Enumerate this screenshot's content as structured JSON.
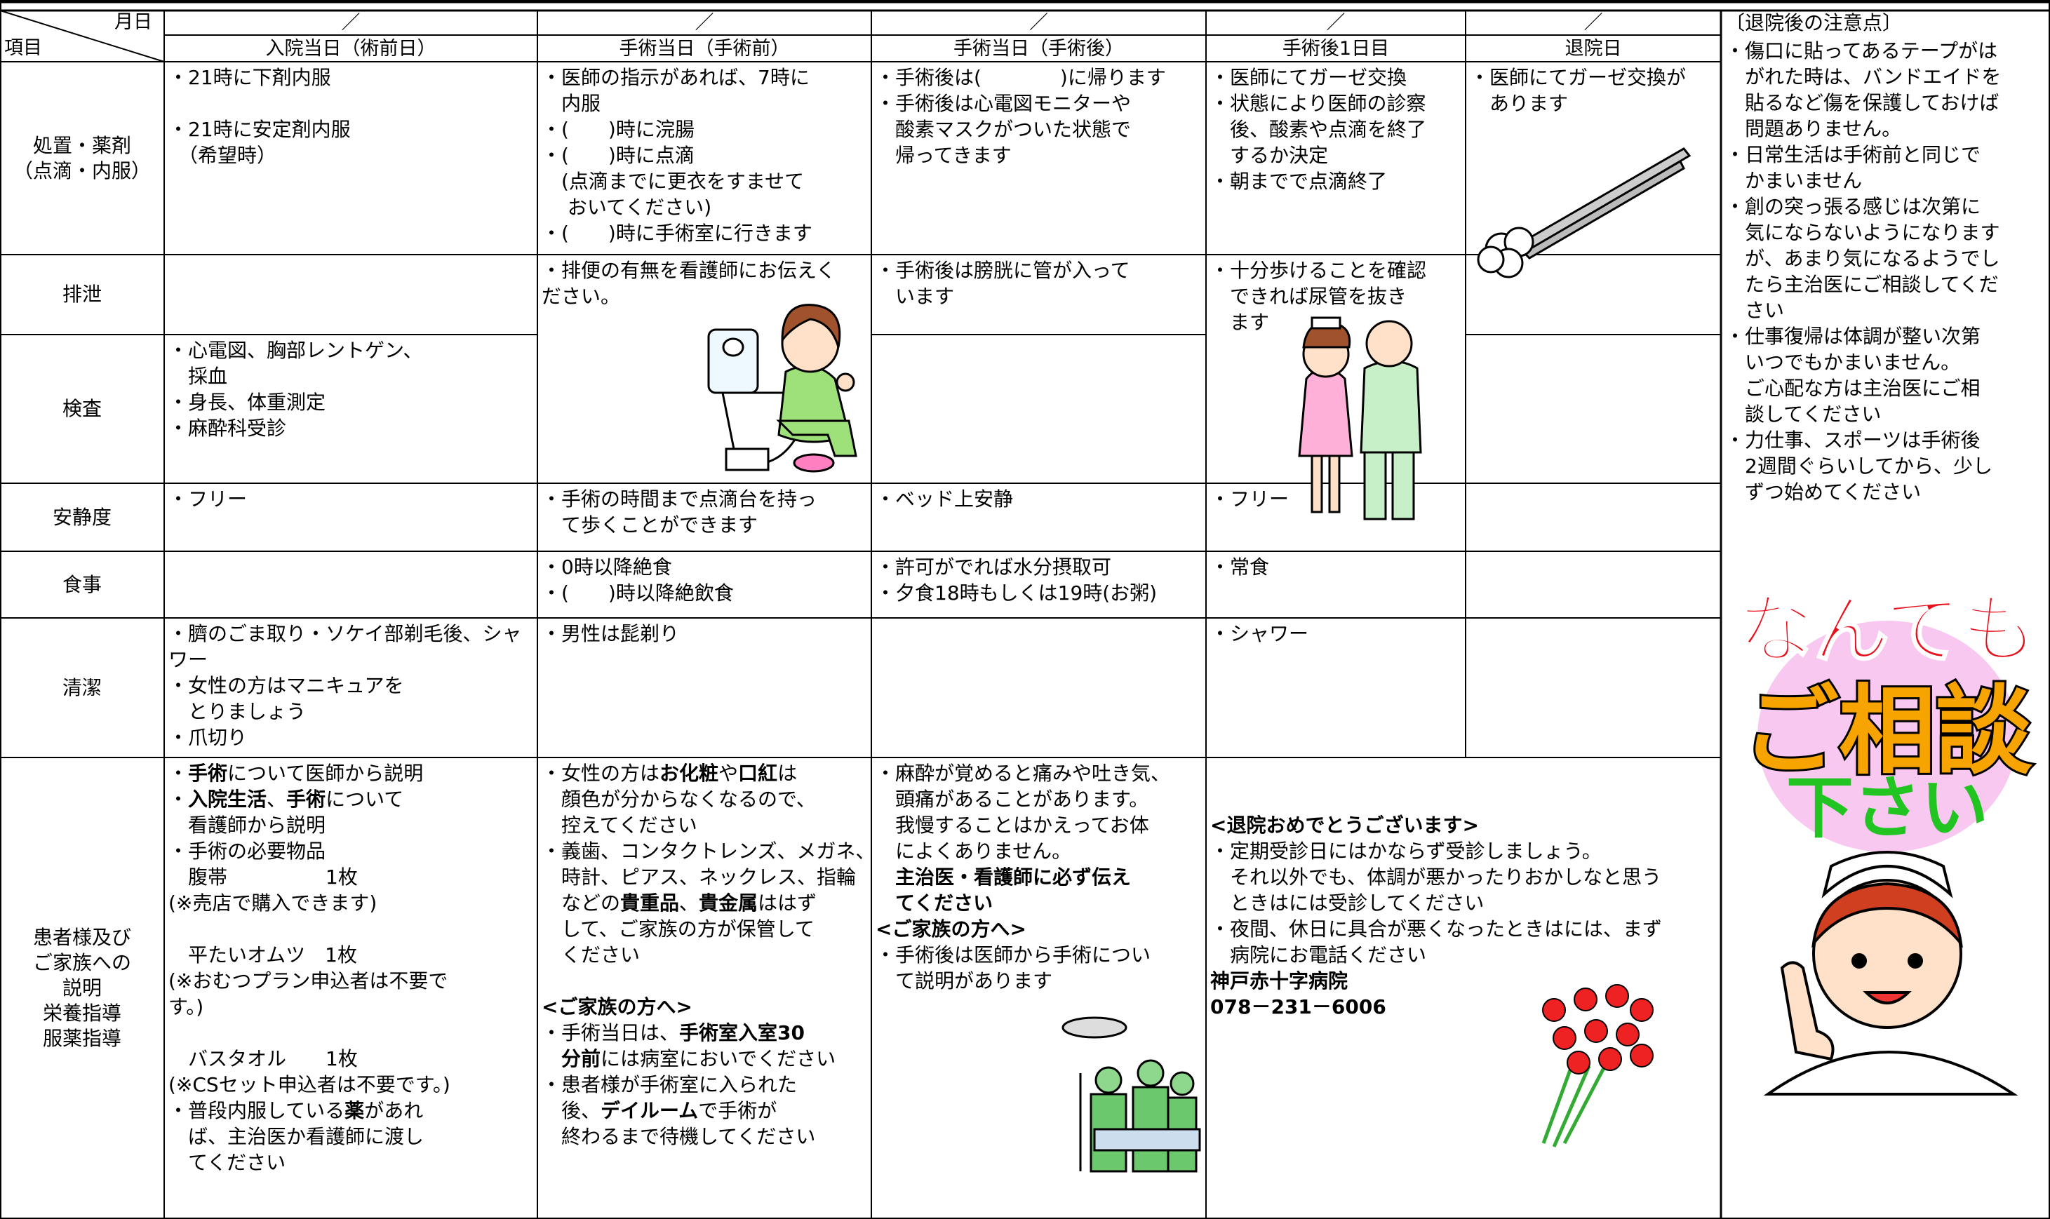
{
  "header": {
    "date_label": "月日",
    "item_label": "項目",
    "date_marks": [
      "／",
      "／",
      "／",
      "／",
      "／"
    ],
    "columns": [
      "入院当日（術前日）",
      "手術当日（手術前）",
      "手術当日（手術後）",
      "手術後1日目",
      "退院日"
    ],
    "notes_title": "〔退院後の注意点〕"
  },
  "rows": [
    [
      "処置・薬剤",
      "（点滴・内服）"
    ],
    [
      "排泄"
    ],
    [
      "検査"
    ],
    [
      "安静度"
    ],
    [
      "食事"
    ],
    [
      "清潔"
    ],
    [
      "患者様及び",
      "ご家族への",
      "説明",
      "栄養指導",
      "服薬指導"
    ]
  ],
  "cells": [
    {
      "blocks": [
        [
          "・21時に下剤内服"
        ],
        [
          "・21時に安定剤内服",
          "　（希望時）"
        ]
      ]
    },
    {
      "blocks": [
        [
          "・医師の指示があれば、7時に",
          "　内服",
          "・(　　)時に浣腸",
          "・(　　)時に点滴",
          "　(点滴までに更衣をすませて",
          "　 おいてください)",
          "・(　　)時に手術室に行きます"
        ]
      ]
    },
    {
      "blocks": [
        [
          "・手術後は(　　　　)に帰ります",
          "・手術後は心電図モニターや",
          "　酸素マスクがついた状態で",
          "　帰ってきます"
        ]
      ]
    },
    {
      "blocks": [
        [
          "・医師にてガーゼ交換",
          "・状態により医師の診察",
          "　後、酸素や点滴を終了",
          "　するか決定",
          "・朝までで点滴終了"
        ]
      ]
    },
    {
      "blocks": [
        [
          "・医師にてガーゼ交換が",
          "　あります"
        ]
      ]
    },
    {
      "blocks": [
        [
          "・排便の有無を看護師にお伝えく",
          "ださい。"
        ]
      ]
    },
    {
      "blocks": [
        [
          "・手術後は膀胱に管が入って",
          "　います"
        ]
      ]
    },
    {
      "blocks": [
        [
          "・十分歩けることを確認",
          "　できれば尿管を抜き",
          "　ます"
        ]
      ]
    },
    {
      "blocks": [
        [
          "・心電図、胸部レントゲン、",
          "　採血",
          "・身長、体重測定",
          "・麻酔科受診"
        ]
      ]
    },
    {
      "blocks": [
        [
          "・フリー"
        ]
      ]
    },
    {
      "blocks": [
        [
          "・手術の時間まで点滴台を持っ",
          "　て歩くことができます"
        ]
      ]
    },
    {
      "blocks": [
        [
          "・ベッド上安静"
        ]
      ]
    },
    {
      "blocks": [
        [
          "・フリー"
        ]
      ]
    },
    {
      "blocks": [
        [
          "・0時以降絶食",
          "・(　　)時以降絶飲食"
        ]
      ]
    },
    {
      "blocks": [
        [
          "・許可がでれば水分摂取可",
          "・夕食18時もしくは19時(お粥)"
        ]
      ]
    },
    {
      "blocks": [
        [
          "・常食"
        ]
      ]
    },
    {
      "blocks": [
        [
          "・臍のごま取り・ソケイ部剃毛後、シャ",
          "ワー",
          "・女性の方はマニキュアを",
          "　とりましょう",
          "・爪切り"
        ]
      ]
    },
    {
      "blocks": [
        [
          "・男性は髭剃り"
        ]
      ]
    },
    {
      "blocks": [
        [
          "・シャワー"
        ]
      ]
    },
    {
      "blocks": [
        [
          [
            "・",
            {
              "text": "手術",
              "bold": true
            },
            "について医師から説明"
          ],
          [
            "・",
            {
              "text": "入院生活",
              "bold": true
            },
            "、",
            {
              "text": "手術",
              "bold": true
            },
            "について"
          ],
          "　看護師から説明",
          "・手術の必要物品",
          "　腹帯　　　　　1枚",
          "(※売店で購入できます)"
        ],
        [
          "　平たいオムツ　1枚",
          "(※おむつプラン申込者は不要で",
          "す。)"
        ],
        [
          "　バスタオル　　1枚",
          "(※CSセット申込者は不要です。)",
          [
            "・普段内服している",
            {
              "text": "薬",
              "bold": true
            },
            "があれ"
          ],
          "　ば、主治医か看護師に渡し",
          "　てください"
        ]
      ]
    },
    {
      "blocks": [
        [
          [
            "・女性の方は",
            {
              "text": "お化粧",
              "bold": true
            },
            "や",
            {
              "text": "口紅",
              "bold": true
            },
            "は"
          ],
          "　顔色が分からなくなるので、",
          "　控えてください",
          "・義歯、コンタクトレンズ、メガネ、",
          "　時計、ピアス、ネックレス、指輪",
          [
            "　などの",
            {
              "text": "貴重品",
              "bold": true
            },
            "、",
            {
              "text": "貴金属",
              "bold": true
            },
            "ははず"
          ],
          "　して、ご家族の方が保管して",
          "　ください"
        ],
        [
          {
            "text": "<ご家族の方へ>",
            "bold": true
          },
          [
            "・手術当日は、",
            {
              "text": "手術室入室30",
              "bold": true
            }
          ],
          [
            {
              "text": "　分前",
              "bold": true
            },
            "には病室においでください"
          ],
          "・患者様が手術室に入られた",
          [
            "　後、",
            {
              "text": "デイルーム",
              "bold": true
            },
            "で手術が"
          ],
          "　終わるまで待機してください"
        ]
      ]
    },
    {
      "blocks": [
        [
          "・麻酔が覚めると痛みや吐き気、",
          "　頭痛があることがあります。",
          "　我慢することはかえってお体",
          "　によくありません。",
          {
            "text": "　主治医・看護師に必ず伝え",
            "bold": true
          },
          {
            "text": "　てください",
            "bold": true
          },
          {
            "text": "<ご家族の方へ>",
            "bold": true
          },
          "・手術後は医師から手術につい",
          "　て説明があります"
        ]
      ]
    },
    {
      "blocks": [
        [
          {
            "text": "<退院おめでとうございます>",
            "bold": true
          },
          "・定期受診日にはかならず受診しましょう。",
          "　それ以外でも、体調が悪かったりおかしなと思う",
          "　ときはには受診してください",
          "・夜間、休日に具合が悪くなったときはには、まず",
          "　病院にお電話ください",
          {
            "text": "神戸赤十字病院",
            "bold": true
          },
          {
            "text": "078－231－6006",
            "bold": true
          }
        ]
      ]
    }
  ],
  "notes": [
    "・傷口に貼ってあるテープがは",
    "　がれた時は、バンドエイドを",
    "　貼るなど傷を保護しておけば",
    "　問題ありません。",
    "・日常生活は手術前と同じで",
    "　かまいません",
    "・創の突っ張る感じは次第に",
    "　気にならないようになります",
    "　が、あまり気になるようでし",
    "　たら主治医にご相談してくだ",
    "　さい",
    "・仕事復帰は体調が整い次第",
    "　いつでもかまいません。",
    "　ご心配な方は主治医にご相",
    "　談してください",
    "・力仕事、スポーツは手術後",
    "　2週間ぐらいしてから、少し",
    "　ずつ始めてください"
  ],
  "callout": {
    "line1": "なんでも",
    "line2": "ご相談",
    "line3": "下さい"
  }
}
